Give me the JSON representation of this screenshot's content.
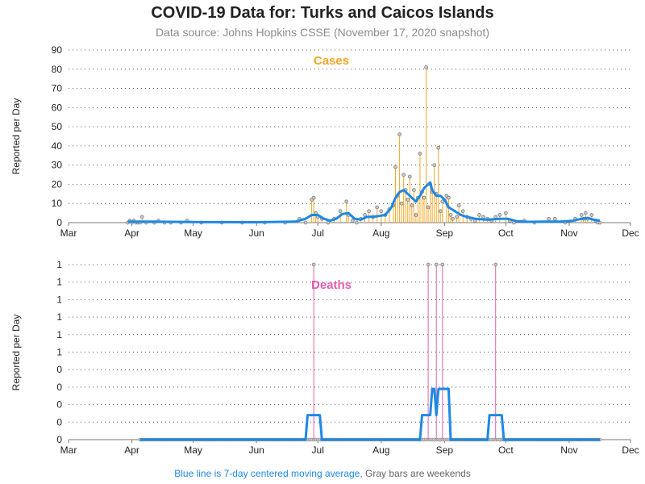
{
  "header": {
    "title": "COVID-19 Data for: Turks and Caicos Islands",
    "subtitle": "Data source: Johns Hopkins CSSE (November 17, 2020 snapshot)"
  },
  "footnote": {
    "moving_average": "Blue line is 7-day centered moving average,",
    "weekends": "Gray bars are weekends"
  },
  "colors": {
    "cases": "#f5a623",
    "deaths": "#e060b0",
    "moving_average": "#1e88e5",
    "marker_fill": "#c8c8c8",
    "grid": "#555555"
  },
  "chart_data": [
    {
      "type": "bar",
      "label": "Cases",
      "ylabel": "Reported per Day",
      "ylim": [
        0,
        90
      ],
      "yticks": [
        "0",
        "10",
        "20",
        "30",
        "40",
        "50",
        "60",
        "70",
        "80",
        "90"
      ],
      "xticks": [
        "Mar",
        "Apr",
        "May",
        "Jun",
        "Jul",
        "Aug",
        "Sep",
        "Oct",
        "Nov",
        "Dec"
      ],
      "xlim": [
        "2020-03-01",
        "2020-12-01"
      ],
      "grid": "horizontal dotted",
      "daily": [
        {
          "date": "2020-03-30",
          "value": 0
        },
        {
          "date": "2020-03-31",
          "value": 1
        },
        {
          "date": "2020-04-01",
          "value": 0
        },
        {
          "date": "2020-04-02",
          "value": 1
        },
        {
          "date": "2020-04-03",
          "value": 0
        },
        {
          "date": "2020-04-04",
          "value": 0
        },
        {
          "date": "2020-04-05",
          "value": 0
        },
        {
          "date": "2020-04-06",
          "value": 3
        },
        {
          "date": "2020-04-08",
          "value": 0
        },
        {
          "date": "2020-04-12",
          "value": 0
        },
        {
          "date": "2020-04-14",
          "value": 1
        },
        {
          "date": "2020-04-17",
          "value": 0
        },
        {
          "date": "2020-04-20",
          "value": 0
        },
        {
          "date": "2020-04-25",
          "value": 0
        },
        {
          "date": "2020-04-28",
          "value": 1
        },
        {
          "date": "2020-05-05",
          "value": 0
        },
        {
          "date": "2020-05-15",
          "value": 0
        },
        {
          "date": "2020-05-25",
          "value": 0
        },
        {
          "date": "2020-06-05",
          "value": 0
        },
        {
          "date": "2020-06-15",
          "value": 0
        },
        {
          "date": "2020-06-22",
          "value": 2
        },
        {
          "date": "2020-06-25",
          "value": 0
        },
        {
          "date": "2020-06-28",
          "value": 12
        },
        {
          "date": "2020-06-29",
          "value": 13
        },
        {
          "date": "2020-06-30",
          "value": 5
        },
        {
          "date": "2020-07-01",
          "value": 3
        },
        {
          "date": "2020-07-03",
          "value": 2
        },
        {
          "date": "2020-07-06",
          "value": 0
        },
        {
          "date": "2020-07-09",
          "value": 2
        },
        {
          "date": "2020-07-12",
          "value": 6
        },
        {
          "date": "2020-07-15",
          "value": 11
        },
        {
          "date": "2020-07-16",
          "value": 4
        },
        {
          "date": "2020-07-18",
          "value": 1
        },
        {
          "date": "2020-07-20",
          "value": 0
        },
        {
          "date": "2020-07-22",
          "value": 2
        },
        {
          "date": "2020-07-24",
          "value": 4
        },
        {
          "date": "2020-07-26",
          "value": 6
        },
        {
          "date": "2020-07-28",
          "value": 3
        },
        {
          "date": "2020-07-30",
          "value": 8
        },
        {
          "date": "2020-08-01",
          "value": 6
        },
        {
          "date": "2020-08-03",
          "value": 4
        },
        {
          "date": "2020-08-05",
          "value": 7
        },
        {
          "date": "2020-08-07",
          "value": 9
        },
        {
          "date": "2020-08-08",
          "value": 29
        },
        {
          "date": "2020-08-09",
          "value": 14
        },
        {
          "date": "2020-08-10",
          "value": 46
        },
        {
          "date": "2020-08-11",
          "value": 10
        },
        {
          "date": "2020-08-12",
          "value": 25
        },
        {
          "date": "2020-08-13",
          "value": 17
        },
        {
          "date": "2020-08-14",
          "value": 12
        },
        {
          "date": "2020-08-15",
          "value": 24
        },
        {
          "date": "2020-08-16",
          "value": 9
        },
        {
          "date": "2020-08-17",
          "value": 17
        },
        {
          "date": "2020-08-18",
          "value": 4
        },
        {
          "date": "2020-08-19",
          "value": 13
        },
        {
          "date": "2020-08-20",
          "value": 36
        },
        {
          "date": "2020-08-21",
          "value": 16
        },
        {
          "date": "2020-08-22",
          "value": 13
        },
        {
          "date": "2020-08-23",
          "value": 81
        },
        {
          "date": "2020-08-24",
          "value": 8
        },
        {
          "date": "2020-08-25",
          "value": 20
        },
        {
          "date": "2020-08-26",
          "value": 16
        },
        {
          "date": "2020-08-27",
          "value": 30
        },
        {
          "date": "2020-08-28",
          "value": 15
        },
        {
          "date": "2020-08-29",
          "value": 39
        },
        {
          "date": "2020-08-30",
          "value": 6
        },
        {
          "date": "2020-08-31",
          "value": 11
        },
        {
          "date": "2020-09-02",
          "value": 14
        },
        {
          "date": "2020-09-03",
          "value": 13
        },
        {
          "date": "2020-09-04",
          "value": 4
        },
        {
          "date": "2020-09-05",
          "value": 2
        },
        {
          "date": "2020-09-07",
          "value": 3
        },
        {
          "date": "2020-09-08",
          "value": 9
        },
        {
          "date": "2020-09-10",
          "value": 6
        },
        {
          "date": "2020-09-12",
          "value": 3
        },
        {
          "date": "2020-09-14",
          "value": 2
        },
        {
          "date": "2020-09-16",
          "value": 1
        },
        {
          "date": "2020-09-18",
          "value": 4
        },
        {
          "date": "2020-09-20",
          "value": 3
        },
        {
          "date": "2020-09-22",
          "value": 2
        },
        {
          "date": "2020-09-24",
          "value": 1
        },
        {
          "date": "2020-09-26",
          "value": 3
        },
        {
          "date": "2020-09-28",
          "value": 4
        },
        {
          "date": "2020-10-01",
          "value": 5
        },
        {
          "date": "2020-10-03",
          "value": 1
        },
        {
          "date": "2020-10-05",
          "value": 0
        },
        {
          "date": "2020-10-10",
          "value": 1
        },
        {
          "date": "2020-10-15",
          "value": 0
        },
        {
          "date": "2020-10-22",
          "value": 2
        },
        {
          "date": "2020-10-25",
          "value": 2
        },
        {
          "date": "2020-10-30",
          "value": 0
        },
        {
          "date": "2020-11-04",
          "value": 2
        },
        {
          "date": "2020-11-07",
          "value": 4
        },
        {
          "date": "2020-11-08",
          "value": 2
        },
        {
          "date": "2020-11-09",
          "value": 5
        },
        {
          "date": "2020-11-10",
          "value": 2
        },
        {
          "date": "2020-11-12",
          "value": 4
        },
        {
          "date": "2020-11-14",
          "value": 1
        },
        {
          "date": "2020-11-15",
          "value": 0
        },
        {
          "date": "2020-11-16",
          "value": 0
        }
      ],
      "moving_average": [
        {
          "date": "2020-03-30",
          "value": 0.5
        },
        {
          "date": "2020-04-10",
          "value": 0.5
        },
        {
          "date": "2020-05-01",
          "value": 0.3
        },
        {
          "date": "2020-06-01",
          "value": 0.2
        },
        {
          "date": "2020-06-20",
          "value": 0.5
        },
        {
          "date": "2020-06-25",
          "value": 2
        },
        {
          "date": "2020-06-28",
          "value": 4
        },
        {
          "date": "2020-07-01",
          "value": 4
        },
        {
          "date": "2020-07-04",
          "value": 2
        },
        {
          "date": "2020-07-07",
          "value": 1
        },
        {
          "date": "2020-07-10",
          "value": 2
        },
        {
          "date": "2020-07-13",
          "value": 4.5
        },
        {
          "date": "2020-07-16",
          "value": 5
        },
        {
          "date": "2020-07-19",
          "value": 2
        },
        {
          "date": "2020-07-22",
          "value": 1.5
        },
        {
          "date": "2020-07-25",
          "value": 3
        },
        {
          "date": "2020-07-28",
          "value": 3
        },
        {
          "date": "2020-07-31",
          "value": 3.5
        },
        {
          "date": "2020-08-03",
          "value": 4
        },
        {
          "date": "2020-08-06",
          "value": 8
        },
        {
          "date": "2020-08-08",
          "value": 13
        },
        {
          "date": "2020-08-10",
          "value": 16
        },
        {
          "date": "2020-08-12",
          "value": 17
        },
        {
          "date": "2020-08-14",
          "value": 15
        },
        {
          "date": "2020-08-16",
          "value": 13
        },
        {
          "date": "2020-08-18",
          "value": 11
        },
        {
          "date": "2020-08-20",
          "value": 14
        },
        {
          "date": "2020-08-22",
          "value": 18
        },
        {
          "date": "2020-08-24",
          "value": 20
        },
        {
          "date": "2020-08-25",
          "value": 21
        },
        {
          "date": "2020-08-26",
          "value": 17
        },
        {
          "date": "2020-08-28",
          "value": 14
        },
        {
          "date": "2020-08-30",
          "value": 14
        },
        {
          "date": "2020-09-01",
          "value": 12
        },
        {
          "date": "2020-09-03",
          "value": 8
        },
        {
          "date": "2020-09-06",
          "value": 6
        },
        {
          "date": "2020-09-09",
          "value": 4
        },
        {
          "date": "2020-09-12",
          "value": 3
        },
        {
          "date": "2020-09-16",
          "value": 2
        },
        {
          "date": "2020-09-22",
          "value": 1.5
        },
        {
          "date": "2020-09-28",
          "value": 2
        },
        {
          "date": "2020-10-02",
          "value": 2
        },
        {
          "date": "2020-10-06",
          "value": 0.8
        },
        {
          "date": "2020-10-12",
          "value": 0.4
        },
        {
          "date": "2020-10-20",
          "value": 0.5
        },
        {
          "date": "2020-10-28",
          "value": 0.6
        },
        {
          "date": "2020-11-03",
          "value": 1
        },
        {
          "date": "2020-11-07",
          "value": 2
        },
        {
          "date": "2020-11-10",
          "value": 2.5
        },
        {
          "date": "2020-11-13",
          "value": 1.5
        },
        {
          "date": "2020-11-16",
          "value": 1
        }
      ]
    },
    {
      "type": "bar",
      "label": "Deaths",
      "ylabel": "Reported per Day",
      "ylim": [
        0,
        1
      ],
      "yticks": [
        "0",
        "0",
        "0",
        "0",
        "0",
        "1",
        "1",
        "1",
        "1",
        "1",
        "1"
      ],
      "xticks": [
        "Mar",
        "Apr",
        "May",
        "Jun",
        "Jul",
        "Aug",
        "Sep",
        "Oct",
        "Nov",
        "Dec"
      ],
      "xlim": [
        "2020-03-01",
        "2020-12-01"
      ],
      "grid": "horizontal dotted",
      "baseline_range": [
        "2020-04-05",
        "2020-11-16"
      ],
      "daily": [
        {
          "date": "2020-06-29",
          "value": 1
        },
        {
          "date": "2020-08-24",
          "value": 1
        },
        {
          "date": "2020-08-28",
          "value": 1
        },
        {
          "date": "2020-08-31",
          "value": 1
        },
        {
          "date": "2020-09-26",
          "value": 1
        }
      ],
      "moving_average": [
        {
          "date": "2020-04-05",
          "value": 0
        },
        {
          "date": "2020-06-25",
          "value": 0
        },
        {
          "date": "2020-06-26",
          "value": 0.14
        },
        {
          "date": "2020-07-02",
          "value": 0.14
        },
        {
          "date": "2020-07-03",
          "value": 0
        },
        {
          "date": "2020-08-20",
          "value": 0
        },
        {
          "date": "2020-08-21",
          "value": 0.14
        },
        {
          "date": "2020-08-25",
          "value": 0.14
        },
        {
          "date": "2020-08-26",
          "value": 0.29
        },
        {
          "date": "2020-08-27",
          "value": 0.29
        },
        {
          "date": "2020-08-28",
          "value": 0.14
        },
        {
          "date": "2020-08-29",
          "value": 0.29
        },
        {
          "date": "2020-09-03",
          "value": 0.29
        },
        {
          "date": "2020-09-04",
          "value": 0
        },
        {
          "date": "2020-09-22",
          "value": 0
        },
        {
          "date": "2020-09-23",
          "value": 0.14
        },
        {
          "date": "2020-09-29",
          "value": 0.14
        },
        {
          "date": "2020-09-30",
          "value": 0
        },
        {
          "date": "2020-11-16",
          "value": 0
        }
      ]
    }
  ]
}
